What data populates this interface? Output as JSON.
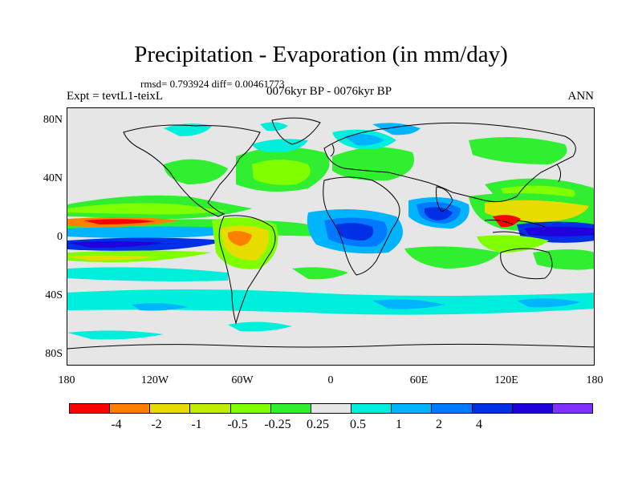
{
  "title": "Precipitation - Evaporation (in mm/day)",
  "stats": "rmsd= 0.793924 diff= 0.00461773",
  "experiment": "Expt = tevtL1-teixL",
  "period": "0076kyr BP - 0076kyr BP",
  "season": "ANN",
  "lat_labels": [
    "80N",
    "40N",
    "0",
    "40S",
    "80S"
  ],
  "lon_labels": [
    "180",
    "120W",
    "60W",
    "0",
    "60E",
    "120E",
    "180"
  ],
  "colorbar": {
    "colors": [
      "#ff0000",
      "#ff8000",
      "#e6dc00",
      "#c0ee00",
      "#80ff00",
      "#30ee30",
      "#e6e6e6",
      "#00eedc",
      "#00b4ff",
      "#0078ff",
      "#0030e6",
      "#2000dc",
      "#8030ff"
    ],
    "labels": [
      "-4",
      "-2",
      "-1",
      "-0.5",
      "-0.25",
      "0.25",
      "0.5",
      "1",
      "2",
      "4"
    ]
  },
  "palette": {
    "background": "#e6e6e6",
    "coastline": "#000000"
  }
}
